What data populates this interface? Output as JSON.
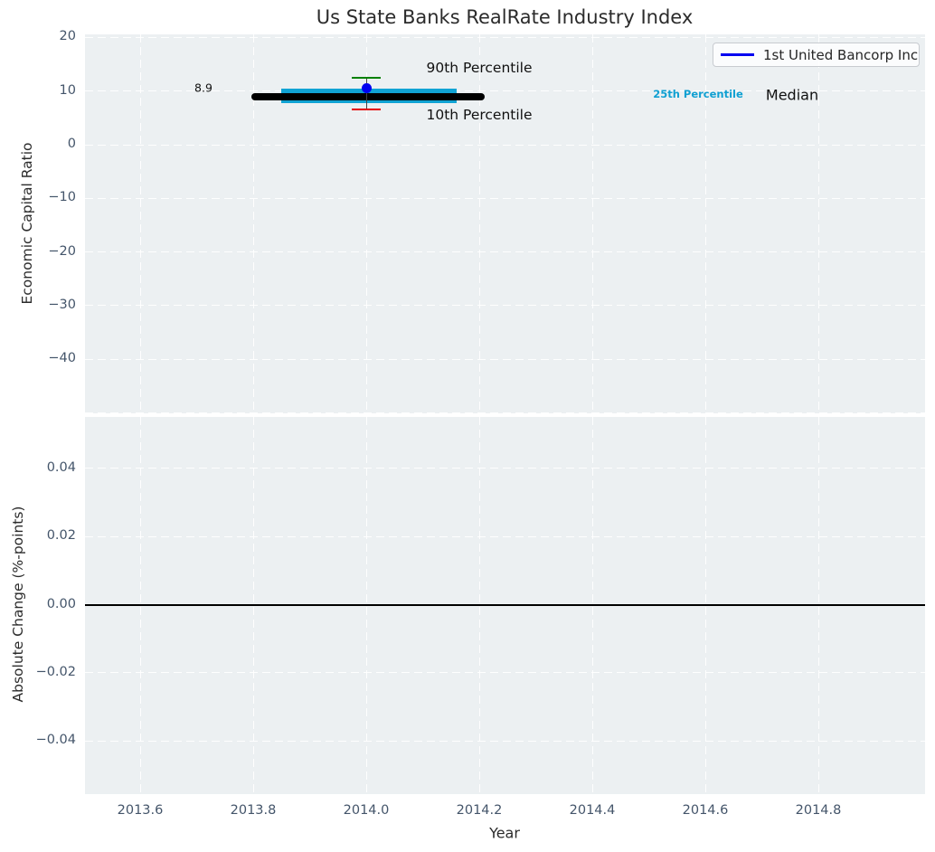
{
  "title": "Us State Banks RealRate Industry Index",
  "legend": {
    "label": "1st United Bancorp Inc",
    "line_color": "#0000f0",
    "position": "upper right"
  },
  "annotations": {
    "median_value": "8.9",
    "p90": "90th Percentile",
    "p10": "10th Percentile",
    "p25": "25th Percentile",
    "median": "Median"
  },
  "colors": {
    "plot_bg": "#ecf0f2",
    "grid": "#ffffff",
    "tick": "#44556a",
    "text": "#2b2b2b",
    "company_dot": "#0000f0",
    "percentile_band": "#10a3d4",
    "p90_cap": "#008000",
    "p10_cap": "#e50000",
    "median_line": "#000000",
    "zero_line": "#000000",
    "p25_text": "#10a0d2"
  },
  "chart_data": [
    {
      "type": "line",
      "title": "Us State Banks RealRate Industry Index",
      "xlabel": "Year",
      "ylabel": "Economic Capital Ratio",
      "xlim": [
        2013.5,
        2014.99
      ],
      "ylim": [
        -50.3,
        20.3
      ],
      "xticks": [
        "2013.6",
        "2013.8",
        "2014.0",
        "2014.2",
        "2014.4",
        "2014.6",
        "2014.8"
      ],
      "xtick_values": [
        2013.6,
        2013.8,
        2014.0,
        2014.2,
        2014.4,
        2014.6,
        2014.8
      ],
      "yticks": [
        "20",
        "10",
        "0",
        "−10",
        "−20",
        "−30",
        "−40"
      ],
      "ytick_values": [
        20,
        10,
        0,
        -10,
        -20,
        -30,
        -40
      ],
      "grid_extra": [
        -50
      ],
      "grid": true,
      "legend_position": "upper right",
      "series": [
        {
          "name": "1st United Bancorp Inc",
          "type": "scatter",
          "x": [
            2014.0
          ],
          "y": [
            10.5
          ],
          "color": "#0000f0"
        },
        {
          "name": "Median",
          "type": "line",
          "x_range": [
            2013.797,
            2014.21
          ],
          "value": 8.9,
          "color": "#000000",
          "linewidth": 8
        },
        {
          "name": "25th-75th Percentile band",
          "type": "band",
          "x_range": [
            2013.85,
            2014.16
          ],
          "low": 7.7,
          "high": 10.4,
          "color": "#10a3d4"
        },
        {
          "name": "90th Percentile",
          "type": "errorbar-cap",
          "x": 2014.0,
          "y": 12.5,
          "color": "#008000"
        },
        {
          "name": "10th Percentile",
          "type": "errorbar-cap",
          "x": 2014.0,
          "y": 6.6,
          "color": "#e50000"
        }
      ]
    },
    {
      "type": "line",
      "xlabel": "Year",
      "ylabel": "Absolute Change (%-points)",
      "xlim": [
        2013.5,
        2014.99
      ],
      "ylim": [
        -0.0555,
        0.0555
      ],
      "yticks": [
        "0.04",
        "0.02",
        "0.00",
        "−0.02",
        "−0.04"
      ],
      "ytick_values": [
        0.04,
        0.02,
        0.0,
        -0.02,
        -0.04
      ],
      "grid": true,
      "zero_line": true,
      "series": []
    }
  ]
}
